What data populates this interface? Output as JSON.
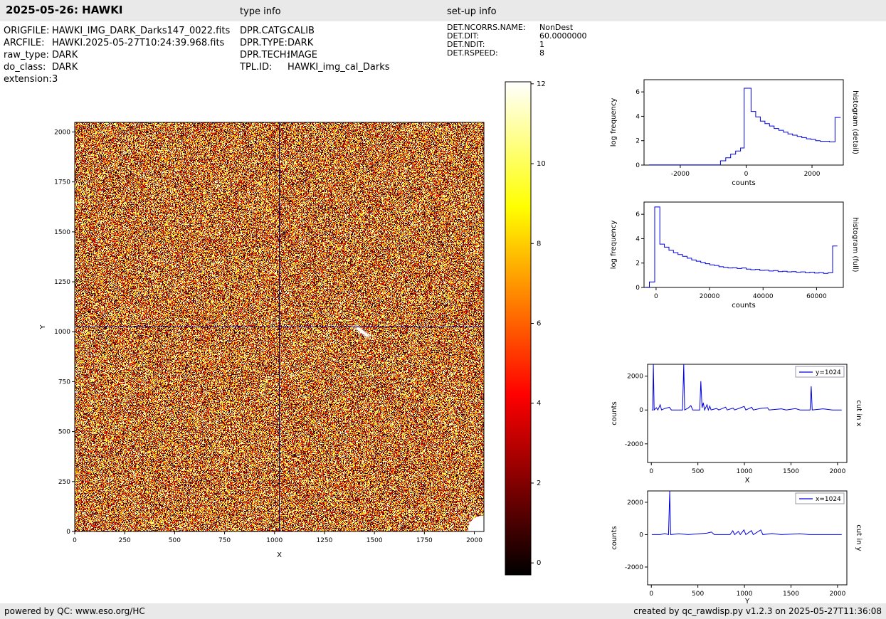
{
  "header": {
    "title": "2025-05-26: HAWKI",
    "type_info_label": "type info",
    "setup_info_label": "set-up info"
  },
  "metadata": {
    "file": [
      {
        "label": "ORIGFILE:",
        "value": "HAWKI_IMG_DARK_Darks147_0022.fits"
      },
      {
        "label": "ARCFILE:",
        "value": "HAWKI.2025-05-27T10:24:39.968.fits"
      },
      {
        "label": "raw_type:",
        "value": "DARK"
      },
      {
        "label": "do_class:",
        "value": "DARK"
      },
      {
        "label": "extension:",
        "value": "3"
      }
    ],
    "type": [
      {
        "label": "DPR.CATG:",
        "value": "CALIB"
      },
      {
        "label": "DPR.TYPE:",
        "value": "DARK"
      },
      {
        "label": "DPR.TECH:",
        "value": "IMAGE"
      },
      {
        "label": "TPL.ID:",
        "value": "HAWKI_img_cal_Darks"
      }
    ],
    "setup": [
      {
        "label": "DET.NCORRS.NAME:",
        "value": "NonDest"
      },
      {
        "label": "DET.DIT:",
        "value": "60.0000000"
      },
      {
        "label": "DET.NDIT:",
        "value": "1"
      },
      {
        "label": "DET.RSPEED:",
        "value": "8"
      }
    ]
  },
  "footer": {
    "left": "powered by QC: www.eso.org/HC",
    "right": "created by qc_rawdisp.py v1.2.3 on 2025-05-27T11:36:08"
  },
  "chart_data": [
    {
      "id": "dark_frame",
      "type": "heatmap",
      "description": "2048x2048 raw HAWKI dark frame shown as pixel noise with hot colormap",
      "xlabel": "X",
      "ylabel": "Y",
      "xlim": [
        0,
        2048
      ],
      "ylim": [
        0,
        2048
      ],
      "x_ticks": [
        0,
        250,
        500,
        750,
        1000,
        1250,
        1500,
        1750,
        2000
      ],
      "y_ticks": [
        0,
        250,
        500,
        750,
        1000,
        1250,
        1500,
        1750,
        2000
      ],
      "colormap": "hot",
      "value_range": [
        0,
        12
      ],
      "noise": {
        "seed": 20250526,
        "distribution": "uniform",
        "value_range": [
          0,
          12
        ]
      },
      "crosshair": {
        "x": 1024,
        "y": 1024,
        "color": "#00008b"
      },
      "artifacts": [
        {
          "name": "bright-blob-bottom-right-corner",
          "x": 2040,
          "y": 8
        },
        {
          "name": "bright-streak",
          "x": 1440,
          "y": 1000
        }
      ],
      "colorbar": {
        "ticks": [
          0,
          2,
          4,
          6,
          8,
          10,
          12
        ],
        "range": [
          -0.3,
          12.05
        ],
        "stops": [
          {
            "pos": 0,
            "color": "#000000"
          },
          {
            "pos": 0.365,
            "color": "#ff0000"
          },
          {
            "pos": 0.746,
            "color": "#ffff00"
          },
          {
            "pos": 1,
            "color": "#ffffff"
          }
        ]
      }
    },
    {
      "id": "histogram_detail",
      "type": "line",
      "step": true,
      "right_label": "histogram (detail)",
      "xlabel": "counts",
      "ylabel": "log frequency",
      "xlim": [
        -3100,
        2950
      ],
      "ylim": [
        0,
        7
      ],
      "x_ticks": [
        -2000,
        0,
        2000
      ],
      "y_ticks": [
        0,
        2,
        4,
        6
      ],
      "line_color": "#0000dd",
      "points": [
        [
          -2950,
          0.02
        ],
        [
          -780,
          0.35
        ],
        [
          -620,
          0.6
        ],
        [
          -470,
          0.9
        ],
        [
          -320,
          1.15
        ],
        [
          -170,
          1.4
        ],
        [
          -60,
          6.3
        ],
        [
          150,
          4.4
        ],
        [
          290,
          3.95
        ],
        [
          430,
          3.6
        ],
        [
          570,
          3.4
        ],
        [
          710,
          3.2
        ],
        [
          850,
          3.0
        ],
        [
          990,
          2.85
        ],
        [
          1130,
          2.7
        ],
        [
          1270,
          2.55
        ],
        [
          1410,
          2.45
        ],
        [
          1550,
          2.35
        ],
        [
          1690,
          2.25
        ],
        [
          1830,
          2.15
        ],
        [
          1970,
          2.1
        ],
        [
          2110,
          2.0
        ],
        [
          2250,
          1.95
        ],
        [
          2390,
          1.95
        ],
        [
          2530,
          1.9
        ],
        [
          2700,
          3.9
        ],
        [
          2870,
          3.9
        ]
      ]
    },
    {
      "id": "histogram_full",
      "type": "line",
      "step": true,
      "right_label": "histogram (full)",
      "xlabel": "counts",
      "ylabel": "log frequency",
      "xlim": [
        -4500,
        70000
      ],
      "ylim": [
        0,
        7
      ],
      "x_ticks": [
        0,
        20000,
        40000,
        60000
      ],
      "y_ticks": [
        0,
        2,
        4,
        6
      ],
      "line_color": "#0000dd",
      "points": [
        [
          -3800,
          0.02
        ],
        [
          -2500,
          0.45
        ],
        [
          -500,
          6.6
        ],
        [
          1400,
          3.55
        ],
        [
          3100,
          3.3
        ],
        [
          4800,
          3.05
        ],
        [
          6500,
          2.85
        ],
        [
          8200,
          2.7
        ],
        [
          9900,
          2.55
        ],
        [
          11600,
          2.4
        ],
        [
          13300,
          2.25
        ],
        [
          15000,
          2.15
        ],
        [
          16700,
          2.05
        ],
        [
          18400,
          1.95
        ],
        [
          20100,
          1.85
        ],
        [
          21800,
          1.8
        ],
        [
          23500,
          1.7
        ],
        [
          25200,
          1.65
        ],
        [
          26900,
          1.6
        ],
        [
          28600,
          1.62
        ],
        [
          30300,
          1.55
        ],
        [
          32000,
          1.6
        ],
        [
          33700,
          1.5
        ],
        [
          35400,
          1.45
        ],
        [
          37100,
          1.48
        ],
        [
          38800,
          1.4
        ],
        [
          40500,
          1.42
        ],
        [
          42200,
          1.35
        ],
        [
          43900,
          1.38
        ],
        [
          45600,
          1.3
        ],
        [
          47300,
          1.33
        ],
        [
          49000,
          1.28
        ],
        [
          50700,
          1.3
        ],
        [
          52400,
          1.25
        ],
        [
          54100,
          1.28
        ],
        [
          55800,
          1.2
        ],
        [
          57500,
          1.25
        ],
        [
          59200,
          1.18
        ],
        [
          60900,
          1.22
        ],
        [
          62600,
          1.15
        ],
        [
          64300,
          1.2
        ],
        [
          66000,
          3.4
        ],
        [
          67800,
          3.4
        ]
      ]
    },
    {
      "id": "cut_in_x",
      "type": "line",
      "step": false,
      "right_label": "cut in x",
      "xlabel": "X",
      "ylabel": "counts",
      "legend": "y=1024",
      "xlim": [
        -40,
        2100
      ],
      "ylim": [
        -3100,
        2700
      ],
      "x_ticks": [
        0,
        500,
        1000,
        1500,
        2000
      ],
      "y_ticks": [
        -2000,
        0,
        2000
      ],
      "line_color": "#0000dd",
      "points": [
        [
          5,
          0
        ],
        [
          15,
          0
        ],
        [
          22,
          2700
        ],
        [
          30,
          0
        ],
        [
          55,
          130
        ],
        [
          70,
          0
        ],
        [
          95,
          310
        ],
        [
          110,
          0
        ],
        [
          145,
          90
        ],
        [
          195,
          160
        ],
        [
          215,
          0
        ],
        [
          335,
          0
        ],
        [
          348,
          2700
        ],
        [
          358,
          0
        ],
        [
          395,
          110
        ],
        [
          425,
          260
        ],
        [
          445,
          0
        ],
        [
          520,
          0
        ],
        [
          532,
          1700
        ],
        [
          545,
          130
        ],
        [
          558,
          430
        ],
        [
          572,
          0
        ],
        [
          598,
          310
        ],
        [
          612,
          0
        ],
        [
          628,
          230
        ],
        [
          642,
          0
        ],
        [
          700,
          90
        ],
        [
          725,
          0
        ],
        [
          798,
          170
        ],
        [
          815,
          0
        ],
        [
          878,
          110
        ],
        [
          895,
          0
        ],
        [
          958,
          130
        ],
        [
          998,
          210
        ],
        [
          1015,
          0
        ],
        [
          1078,
          160
        ],
        [
          1095,
          0
        ],
        [
          1178,
          100
        ],
        [
          1248,
          130
        ],
        [
          1265,
          0
        ],
        [
          1398,
          70
        ],
        [
          1448,
          0
        ],
        [
          1548,
          80
        ],
        [
          1598,
          0
        ],
        [
          1705,
          0
        ],
        [
          1717,
          1400
        ],
        [
          1728,
          0
        ],
        [
          1845,
          70
        ],
        [
          1945,
          0
        ],
        [
          2045,
          0
        ]
      ]
    },
    {
      "id": "cut_in_y",
      "type": "line",
      "step": false,
      "right_label": "cut in y",
      "xlabel": "Y",
      "ylabel": "counts",
      "legend": "x=1024",
      "xlim": [
        -40,
        2100
      ],
      "ylim": [
        -3100,
        2700
      ],
      "x_ticks": [
        0,
        500,
        1000,
        1500,
        2000
      ],
      "y_ticks": [
        -2000,
        0,
        2000
      ],
      "line_color": "#0000dd",
      "points": [
        [
          5,
          0
        ],
        [
          95,
          0
        ],
        [
          145,
          70
        ],
        [
          185,
          0
        ],
        [
          198,
          2700
        ],
        [
          208,
          0
        ],
        [
          295,
          60
        ],
        [
          395,
          0
        ],
        [
          595,
          90
        ],
        [
          645,
          160
        ],
        [
          678,
          0
        ],
        [
          845,
          0
        ],
        [
          875,
          240
        ],
        [
          895,
          0
        ],
        [
          935,
          200
        ],
        [
          955,
          0
        ],
        [
          995,
          290
        ],
        [
          1015,
          0
        ],
        [
          1075,
          250
        ],
        [
          1095,
          0
        ],
        [
          1175,
          290
        ],
        [
          1198,
          0
        ],
        [
          1295,
          70
        ],
        [
          1395,
          0
        ],
        [
          1595,
          60
        ],
        [
          1695,
          0
        ],
        [
          2045,
          0
        ]
      ]
    }
  ]
}
